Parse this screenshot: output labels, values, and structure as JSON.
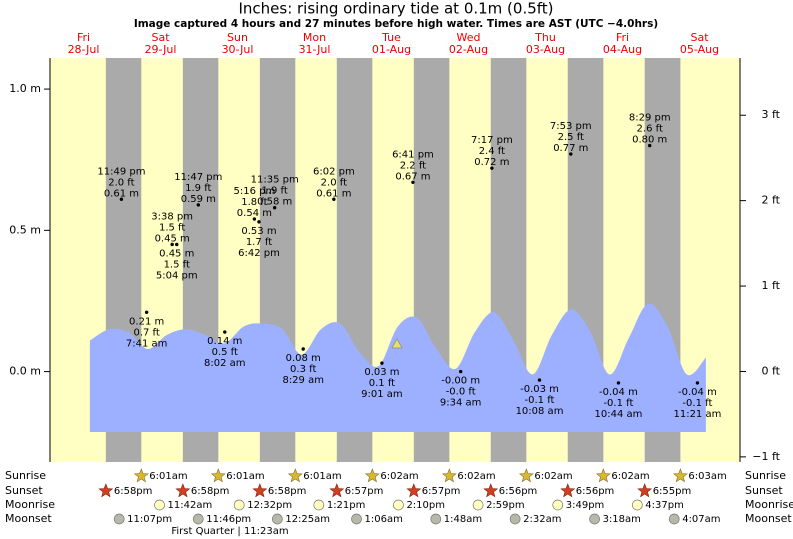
{
  "header": {
    "title": "Inches: rising  ordinary tide at 0.1m (0.5ft)",
    "subtitle": "Image captured 4 hours and 27 minutes before high water. Times are AST (UTC −4.0hrs)"
  },
  "chart_data": {
    "type": "area",
    "days": [
      {
        "name": "Fri",
        "date": "28-Jul"
      },
      {
        "name": "Sat",
        "date": "29-Jul"
      },
      {
        "name": "Sun",
        "date": "30-Jul"
      },
      {
        "name": "Mon",
        "date": "31-Jul"
      },
      {
        "name": "Tue",
        "date": "01-Aug"
      },
      {
        "name": "Wed",
        "date": "02-Aug"
      },
      {
        "name": "Thu",
        "date": "03-Aug"
      },
      {
        "name": "Fri",
        "date": "04-Aug"
      },
      {
        "name": "Sat",
        "date": "05-Aug"
      }
    ],
    "ylim": [
      -0.32,
      1.11
    ],
    "yticks": [
      {
        "value": 0,
        "label": "0.0 m"
      },
      {
        "value": 0.5,
        "label": "0.5 m"
      },
      {
        "value": 1,
        "label": "1.0 m"
      }
    ],
    "y2lim": [
      -1.06,
      3.67
    ],
    "y2ticks": [
      {
        "value": -1,
        "label": "−1 ft"
      },
      {
        "value": 0,
        "label": "0 ft"
      },
      {
        "value": 1,
        "label": "1 ft"
      },
      {
        "value": 2,
        "label": "2 ft"
      },
      {
        "value": 3,
        "label": "3 ft"
      }
    ],
    "curve": {
      "color": "#9db0ff",
      "values": [
        0.11,
        0.15,
        0.14,
        0.08,
        0.13,
        0.15,
        0.13,
        0.1,
        0.16,
        0.17,
        0.15,
        0.06,
        0.15,
        0.17,
        0.07,
        0.02,
        0.16,
        0.19,
        0.08,
        0.01,
        0.14,
        0.21,
        0.11,
        -0.01,
        0.13,
        0.22,
        0.14,
        -0.01,
        0.12,
        0.24,
        0.16,
        -0.01,
        0.05
      ]
    },
    "extremes": [
      {
        "date": "28-Jul",
        "time": "11:49 pm",
        "m": 0.61,
        "m_label": "0.61 m",
        "ft_label": "2.0 ft"
      },
      {
        "date": "29-Jul",
        "time": "7:41 am",
        "m": 0.21,
        "m_label": "0.21 m",
        "ft_label": "0.7 ft"
      },
      {
        "date": "29-Jul",
        "time": "3:38 pm",
        "m": 0.45,
        "m_label": "0.45 m",
        "ft_label": "1.5 ft"
      },
      {
        "date": "29-Jul",
        "time": "5:04 pm",
        "m": 0.45,
        "m_label": "0.45 m",
        "ft_label": "1.5 ft"
      },
      {
        "date": "29-Jul",
        "time": "11:47 pm",
        "m": 0.59,
        "m_label": "0.59 m",
        "ft_label": "1.9 ft"
      },
      {
        "date": "30-Jul",
        "time": "8:02 am",
        "m": 0.14,
        "m_label": "0.14 m",
        "ft_label": "0.5 ft"
      },
      {
        "date": "30-Jul",
        "time": "5:16 pm",
        "m": 0.54,
        "m_label": "0.54 m",
        "ft_label": "1.8 ft"
      },
      {
        "date": "30-Jul",
        "time": "6:42 pm",
        "m": 0.53,
        "m_label": "0.53 m",
        "ft_label": "1.7 ft"
      },
      {
        "date": "30-Jul",
        "time": "11:35 pm",
        "m": 0.58,
        "m_label": "0.58 m",
        "ft_label": "1.9 ft"
      },
      {
        "date": "31-Jul",
        "time": "8:29 am",
        "m": 0.08,
        "m_label": "0.08 m",
        "ft_label": "0.3 ft"
      },
      {
        "date": "31-Jul",
        "time": "6:02 pm",
        "m": 0.61,
        "m_label": "0.61 m",
        "ft_label": "2.0 ft"
      },
      {
        "date": "01-Aug",
        "time": "9:01 am",
        "m": 0.03,
        "m_label": "0.03 m",
        "ft_label": "0.1 ft"
      },
      {
        "date": "01-Aug",
        "time": "6:41 pm",
        "m": 0.67,
        "m_label": "0.67 m",
        "ft_label": "2.2 ft"
      },
      {
        "date": "02-Aug",
        "time": "9:34 am",
        "m": -0.0,
        "m_label": "-0.00 m",
        "ft_label": "-0.0 ft"
      },
      {
        "date": "02-Aug",
        "time": "7:17 pm",
        "m": 0.72,
        "m_label": "0.72 m",
        "ft_label": "2.4 ft"
      },
      {
        "date": "03-Aug",
        "time": "10:08 am",
        "m": -0.03,
        "m_label": "-0.03 m",
        "ft_label": "-0.1 ft"
      },
      {
        "date": "03-Aug",
        "time": "7:53 pm",
        "m": 0.77,
        "m_label": "0.77 m",
        "ft_label": "2.5 ft"
      },
      {
        "date": "04-Aug",
        "time": "10:44 am",
        "m": -0.04,
        "m_label": "-0.04 m",
        "ft_label": "-0.1 ft"
      },
      {
        "date": "04-Aug",
        "time": "8:29 pm",
        "m": 0.8,
        "m_label": "0.80 m",
        "ft_label": "2.6 ft"
      },
      {
        "date": "05-Aug",
        "time": "11:21 am",
        "m": -0.04,
        "m_label": "-0.04 m",
        "ft_label": "-0.1 ft"
      }
    ],
    "rows": [
      {
        "label": "Sunrise",
        "times": [
          null,
          "6:01am",
          "6:01am",
          "6:01am",
          "6:02am",
          "6:02am",
          "6:02am",
          "6:02am",
          "6:03am"
        ]
      },
      {
        "label": "Sunset",
        "times": [
          "6:58pm",
          "6:58pm",
          "6:58pm",
          "6:57pm",
          "6:57pm",
          "6:56pm",
          "6:56pm",
          "6:55pm",
          null
        ]
      },
      {
        "label": "Moonrise",
        "times": [
          null,
          "11:42am",
          "12:32pm",
          "1:21pm",
          "2:10pm",
          "2:59pm",
          "3:49pm",
          "4:37pm",
          null
        ]
      },
      {
        "label": "Moonset",
        "times": [
          "11:07pm",
          "11:46pm",
          null,
          "12:25am",
          "1:06am",
          "1:48am",
          "2:32am",
          "3:18am",
          "4:07am"
        ]
      }
    ],
    "moon_phase": "First Quarter | 11:23am"
  }
}
